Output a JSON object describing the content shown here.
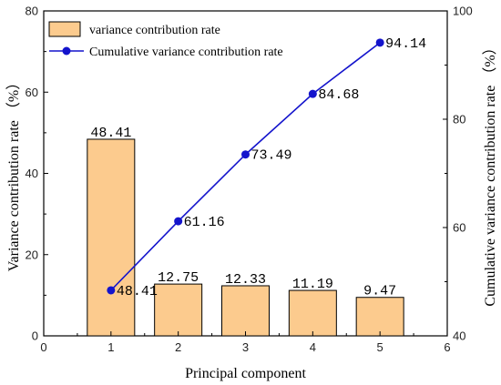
{
  "chart_data": {
    "type": "bar",
    "xlabel": "Principal component",
    "ylabel": "Variance contribution rate （%）",
    "y2label": "Cumulative variance contribution rate （%）",
    "xlim": [
      0,
      6
    ],
    "ylim": [
      0,
      80
    ],
    "y2lim": [
      40,
      100
    ],
    "xticks": [
      "0",
      "1",
      "2",
      "3",
      "4",
      "5",
      "6"
    ],
    "yticks": [
      "0",
      "20",
      "40",
      "60",
      "80"
    ],
    "y2ticks": [
      "40",
      "60",
      "80",
      "100"
    ],
    "grid": false,
    "legend_position": "top-left",
    "categories": [
      "1",
      "2",
      "3",
      "4",
      "5"
    ],
    "series": [
      {
        "name": "variance contribution rate",
        "type": "bar",
        "axis": "left",
        "color": "#FCCB8E",
        "values": [
          48.41,
          12.75,
          12.33,
          11.19,
          9.47
        ],
        "labels": [
          "48.41",
          "12.75",
          "12.33",
          "11.19",
          "9.47"
        ]
      },
      {
        "name": "Cumulative variance contribution rate",
        "type": "line",
        "axis": "right",
        "color": "#1414CC",
        "values": [
          48.41,
          61.16,
          73.49,
          84.68,
          94.14
        ],
        "labels": [
          "48.41",
          "61.16",
          "73.49",
          "84.68",
          "94.14"
        ]
      }
    ]
  }
}
